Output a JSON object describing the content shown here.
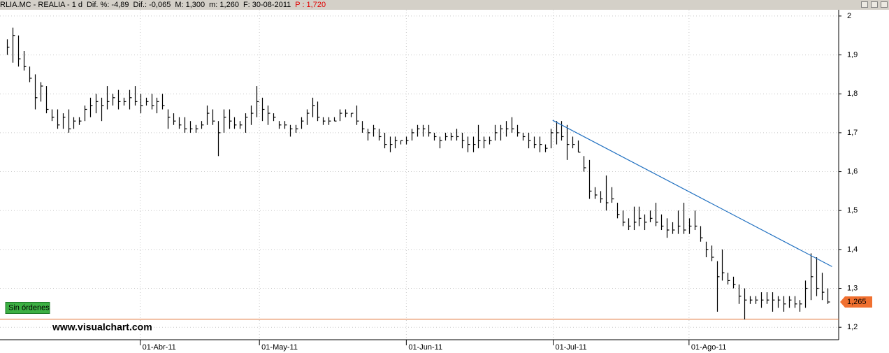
{
  "chart_data": {
    "type": "hlc",
    "header": [
      "RLIA.MC - REALIA - 1 d",
      "Dif. %: -4,89",
      "Dif.: -0,065",
      "M: 1,300",
      "m: 1,260",
      "F: 30-08-2011",
      "P : 1,720"
    ],
    "bar_color": "#000000",
    "ylim": [
      1.168,
      2.016
    ],
    "yticks": [
      {
        "value": 1.2,
        "label": "1,2"
      },
      {
        "value": 1.3,
        "label": "1,3"
      },
      {
        "value": 1.4,
        "label": "1,4"
      },
      {
        "value": 1.5,
        "label": "1,5"
      },
      {
        "value": 1.6,
        "label": "1,6"
      },
      {
        "value": 1.7,
        "label": "1,7"
      },
      {
        "value": 1.8,
        "label": "1,8"
      },
      {
        "value": 1.9,
        "label": "1,9"
      },
      2
    ],
    "xlim": [
      -1.3,
      150
    ],
    "xticks": [
      {
        "value": 24,
        "label": "01-Abr-11"
      },
      {
        "value": 45.5,
        "label": "01-May-11"
      },
      {
        "value": 72,
        "label": "01-Jun-11"
      },
      {
        "value": 98.5,
        "label": "01-Jul-11"
      },
      {
        "value": 123,
        "label": "01-Ago-11"
      }
    ],
    "grid": true,
    "bars": [
      [
        1.94,
        1.9,
        1.92
      ],
      [
        1.97,
        1.88,
        1.95
      ],
      [
        1.95,
        1.87,
        1.89
      ],
      [
        1.91,
        1.86,
        1.87
      ],
      [
        1.87,
        1.83,
        1.84
      ],
      [
        1.85,
        1.76,
        1.79
      ],
      [
        1.83,
        1.78,
        1.82
      ],
      [
        1.82,
        1.75,
        1.76
      ],
      [
        1.76,
        1.73,
        1.74
      ],
      [
        1.76,
        1.71,
        1.72
      ],
      [
        1.75,
        1.71,
        1.74
      ],
      [
        1.76,
        1.7,
        1.71
      ],
      [
        1.74,
        1.71,
        1.73
      ],
      [
        1.74,
        1.72,
        1.73
      ],
      [
        1.77,
        1.73,
        1.76
      ],
      [
        1.79,
        1.74,
        1.77
      ],
      [
        1.8,
        1.75,
        1.78
      ],
      [
        1.79,
        1.73,
        1.77
      ],
      [
        1.82,
        1.76,
        1.78
      ],
      [
        1.8,
        1.77,
        1.79
      ],
      [
        1.81,
        1.76,
        1.78
      ],
      [
        1.79,
        1.77,
        1.78
      ],
      [
        1.81,
        1.76,
        1.79
      ],
      [
        1.82,
        1.77,
        1.78
      ],
      [
        1.8,
        1.75,
        1.77
      ],
      [
        1.79,
        1.77,
        1.78
      ],
      [
        1.8,
        1.76,
        1.77
      ],
      [
        1.79,
        1.75,
        1.78
      ],
      [
        1.8,
        1.76,
        1.77
      ],
      [
        1.76,
        1.71,
        1.74
      ],
      [
        1.75,
        1.72,
        1.73
      ],
      [
        1.74,
        1.71,
        1.72
      ],
      [
        1.74,
        1.7,
        1.71
      ],
      [
        1.73,
        1.7,
        1.71
      ],
      [
        1.72,
        1.7,
        1.71
      ],
      [
        1.73,
        1.71,
        1.72
      ],
      [
        1.77,
        1.72,
        1.75
      ],
      [
        1.76,
        1.72,
        1.73
      ],
      [
        1.73,
        1.64,
        1.7
      ],
      [
        1.76,
        1.7,
        1.74
      ],
      [
        1.76,
        1.71,
        1.73
      ],
      [
        1.74,
        1.71,
        1.72
      ],
      [
        1.73,
        1.71,
        1.72
      ],
      [
        1.75,
        1.7,
        1.74
      ],
      [
        1.77,
        1.72,
        1.75
      ],
      [
        1.82,
        1.74,
        1.78
      ],
      [
        1.79,
        1.73,
        1.76
      ],
      [
        1.77,
        1.72,
        1.75
      ],
      [
        1.75,
        1.73,
        1.74
      ],
      [
        1.73,
        1.71,
        1.72
      ],
      [
        1.73,
        1.71,
        1.72
      ],
      [
        1.72,
        1.69,
        1.71
      ],
      [
        1.72,
        1.7,
        1.71
      ],
      [
        1.74,
        1.71,
        1.73
      ],
      [
        1.76,
        1.72,
        1.75
      ],
      [
        1.79,
        1.74,
        1.77
      ],
      [
        1.78,
        1.73,
        1.74
      ],
      [
        1.74,
        1.72,
        1.73
      ],
      [
        1.74,
        1.72,
        1.73
      ],
      [
        1.74,
        1.73,
        1.73
      ],
      [
        1.76,
        1.73,
        1.75
      ],
      [
        1.76,
        1.74,
        1.75
      ],
      [
        1.75,
        1.74,
        1.75
      ],
      [
        1.77,
        1.72,
        1.73
      ],
      [
        1.73,
        1.7,
        1.71
      ],
      [
        1.71,
        1.68,
        1.7
      ],
      [
        1.72,
        1.69,
        1.71
      ],
      [
        1.71,
        1.68,
        1.69
      ],
      [
        1.7,
        1.66,
        1.67
      ],
      [
        1.69,
        1.65,
        1.67
      ],
      [
        1.69,
        1.66,
        1.68
      ],
      [
        1.68,
        1.67,
        1.68
      ],
      [
        1.69,
        1.67,
        1.68
      ],
      [
        1.71,
        1.68,
        1.7
      ],
      [
        1.72,
        1.69,
        1.71
      ],
      [
        1.72,
        1.69,
        1.71
      ],
      [
        1.72,
        1.69,
        1.7
      ],
      [
        1.7,
        1.68,
        1.69
      ],
      [
        1.69,
        1.66,
        1.68
      ],
      [
        1.7,
        1.68,
        1.69
      ],
      [
        1.7,
        1.68,
        1.69
      ],
      [
        1.71,
        1.68,
        1.69
      ],
      [
        1.7,
        1.66,
        1.68
      ],
      [
        1.69,
        1.65,
        1.67
      ],
      [
        1.69,
        1.65,
        1.67
      ],
      [
        1.72,
        1.66,
        1.68
      ],
      [
        1.69,
        1.66,
        1.68
      ],
      [
        1.69,
        1.67,
        1.68
      ],
      [
        1.72,
        1.68,
        1.7
      ],
      [
        1.72,
        1.68,
        1.71
      ],
      [
        1.73,
        1.69,
        1.71
      ],
      [
        1.74,
        1.7,
        1.71
      ],
      [
        1.72,
        1.69,
        1.7
      ],
      [
        1.7,
        1.68,
        1.69
      ],
      [
        1.7,
        1.66,
        1.68
      ],
      [
        1.69,
        1.66,
        1.67
      ],
      [
        1.69,
        1.65,
        1.67
      ],
      [
        1.67,
        1.65,
        1.66
      ],
      [
        1.71,
        1.66,
        1.7
      ],
      [
        1.73,
        1.67,
        1.7
      ],
      [
        1.73,
        1.68,
        1.69
      ],
      [
        1.72,
        1.63,
        1.67
      ],
      [
        1.69,
        1.66,
        1.67
      ],
      [
        1.68,
        1.65,
        1.65
      ],
      [
        1.64,
        1.6,
        1.61
      ],
      [
        1.63,
        1.53,
        1.55
      ],
      [
        1.56,
        1.53,
        1.54
      ],
      [
        1.55,
        1.52,
        1.53
      ],
      [
        1.59,
        1.5,
        1.52
      ],
      [
        1.56,
        1.52,
        1.53
      ],
      [
        1.52,
        1.48,
        1.49
      ],
      [
        1.5,
        1.46,
        1.47
      ],
      [
        1.48,
        1.45,
        1.46
      ],
      [
        1.51,
        1.45,
        1.47
      ],
      [
        1.51,
        1.46,
        1.48
      ],
      [
        1.49,
        1.45,
        1.47
      ],
      [
        1.5,
        1.47,
        1.48
      ],
      [
        1.52,
        1.46,
        1.47
      ],
      [
        1.49,
        1.45,
        1.46
      ],
      [
        1.48,
        1.43,
        1.45
      ],
      [
        1.47,
        1.44,
        1.45
      ],
      [
        1.5,
        1.44,
        1.46
      ],
      [
        1.52,
        1.44,
        1.45
      ],
      [
        1.48,
        1.44,
        1.46
      ],
      [
        1.5,
        1.45,
        1.46
      ],
      [
        1.46,
        1.42,
        1.43
      ],
      [
        1.42,
        1.38,
        1.4
      ],
      [
        1.41,
        1.37,
        1.38
      ],
      [
        1.37,
        1.24,
        1.33
      ],
      [
        1.4,
        1.32,
        1.34
      ],
      [
        1.34,
        1.31,
        1.32
      ],
      [
        1.33,
        1.3,
        1.31
      ],
      [
        1.31,
        1.26,
        1.28
      ],
      [
        1.3,
        1.22,
        1.27
      ],
      [
        1.28,
        1.26,
        1.27
      ],
      [
        1.28,
        1.26,
        1.27
      ],
      [
        1.29,
        1.25,
        1.27
      ],
      [
        1.29,
        1.26,
        1.27
      ],
      [
        1.29,
        1.24,
        1.27
      ],
      [
        1.28,
        1.25,
        1.27
      ],
      [
        1.28,
        1.24,
        1.26
      ],
      [
        1.28,
        1.25,
        1.27
      ],
      [
        1.28,
        1.25,
        1.26
      ],
      [
        1.27,
        1.24,
        1.26
      ],
      [
        1.32,
        1.25,
        1.3
      ],
      [
        1.39,
        1.27,
        1.33
      ],
      [
        1.38,
        1.28,
        1.3
      ],
      [
        1.34,
        1.27,
        1.29
      ],
      [
        1.3,
        1.26,
        1.265
      ]
    ],
    "trendline": {
      "x": [
        98.4,
        148.8
      ],
      "y": [
        1.732,
        1.356
      ],
      "color": "#1f6fc0"
    },
    "order_line": {
      "value": 1.221,
      "color": "#e07030",
      "label": "Sin órdenes",
      "label_color": "#3cb043"
    },
    "last_price": {
      "value": 1.265,
      "label": "1,265",
      "color": "#f07030"
    },
    "watermark": "www.visualchart.com"
  }
}
